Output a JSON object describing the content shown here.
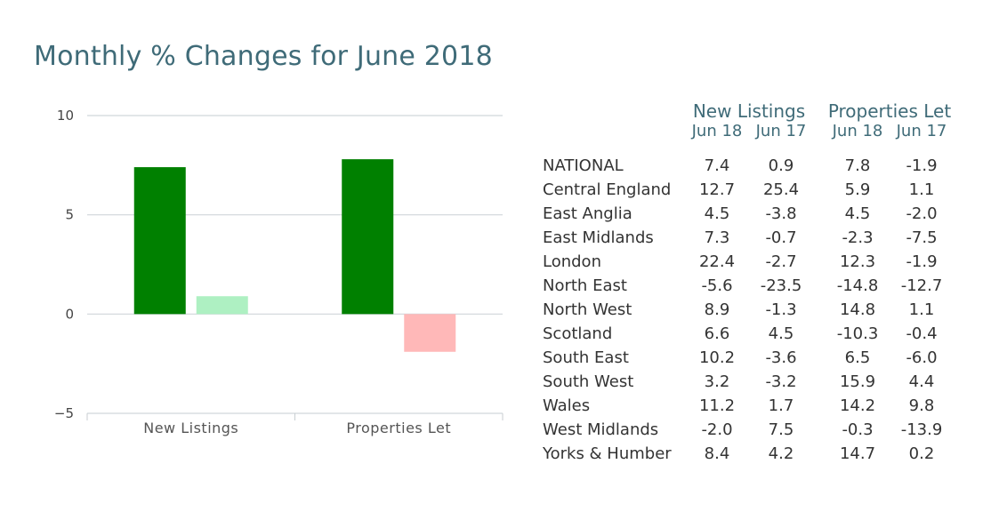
{
  "title": "Monthly % Changes for June 2018",
  "chart_data": {
    "type": "bar",
    "categories": [
      "New Listings",
      "Properties Let"
    ],
    "series": [
      {
        "values": [
          7.4,
          7.8
        ],
        "colors": [
          "#008000",
          "#008000"
        ]
      },
      {
        "values": [
          0.9,
          -1.9
        ],
        "colors": [
          "#aef0c2",
          "#ffb8b8"
        ]
      }
    ],
    "ylim": [
      -5,
      10
    ],
    "yticks": [
      -5,
      0,
      5,
      10
    ],
    "ytick_labels": [
      "−5",
      "0",
      "5",
      "10"
    ],
    "grid": true
  },
  "table": {
    "group_headers": [
      "New Listings",
      "Properties Let"
    ],
    "sub_headers": [
      "Jun 18",
      "Jun 17",
      "Jun 18",
      "Jun 17"
    ],
    "rows": [
      {
        "region": "NATIONAL",
        "v": [
          "7.4",
          "0.9",
          "7.8",
          "-1.9"
        ]
      },
      {
        "region": "Central England",
        "v": [
          "12.7",
          "25.4",
          "5.9",
          "1.1"
        ]
      },
      {
        "region": "East Anglia",
        "v": [
          "4.5",
          "-3.8",
          "4.5",
          "-2.0"
        ]
      },
      {
        "region": "East Midlands",
        "v": [
          "7.3",
          "-0.7",
          "-2.3",
          "-7.5"
        ]
      },
      {
        "region": "London",
        "v": [
          "22.4",
          "-2.7",
          "12.3",
          "-1.9"
        ]
      },
      {
        "region": "North East",
        "v": [
          "-5.6",
          "-23.5",
          "-14.8",
          "-12.7"
        ]
      },
      {
        "region": "North West",
        "v": [
          "8.9",
          "-1.3",
          "14.8",
          "1.1"
        ]
      },
      {
        "region": "Scotland",
        "v": [
          "6.6",
          "4.5",
          "-10.3",
          "-0.4"
        ]
      },
      {
        "region": "South East",
        "v": [
          "10.2",
          "-3.6",
          "6.5",
          "-6.0"
        ]
      },
      {
        "region": "South West",
        "v": [
          "3.2",
          "-3.2",
          "15.9",
          "4.4"
        ]
      },
      {
        "region": "Wales",
        "v": [
          "11.2",
          "1.7",
          "14.2",
          "9.8"
        ]
      },
      {
        "region": "West Midlands",
        "v": [
          "-2.0",
          "7.5",
          "-0.3",
          "-13.9"
        ]
      },
      {
        "region": "Yorks & Humber",
        "v": [
          "8.4",
          "4.2",
          "14.7",
          "0.2"
        ]
      }
    ]
  }
}
